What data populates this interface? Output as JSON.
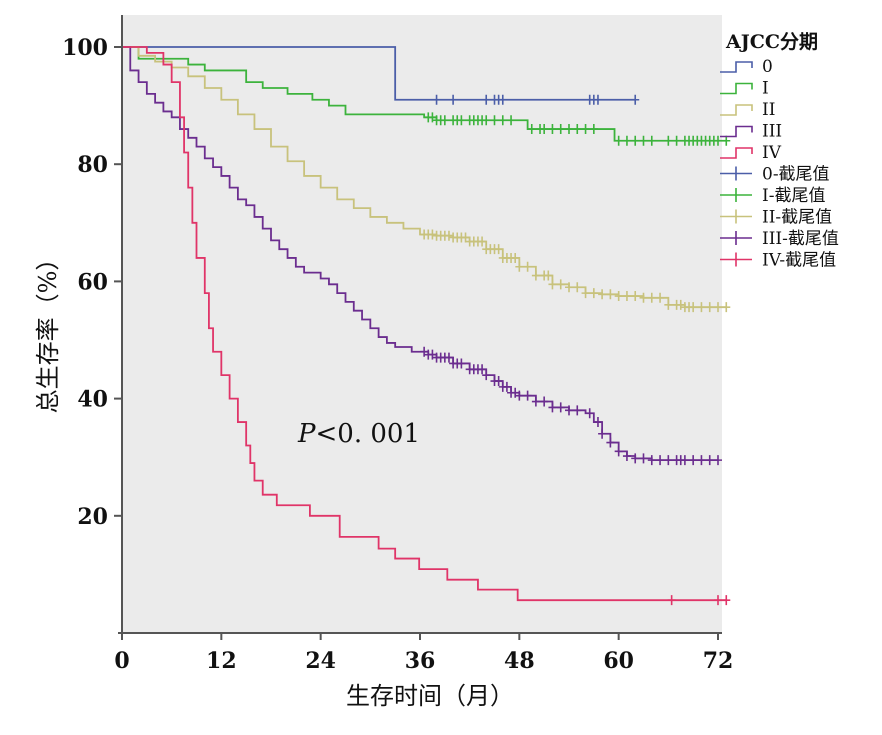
{
  "chart_data": {
    "type": "line",
    "subtype": "kaplan-meier step",
    "title": "",
    "xlabel": "生存时间（月）",
    "ylabel": "总生存率（%）",
    "xlim": [
      0,
      72
    ],
    "ylim": [
      0,
      100
    ],
    "x_ticks": [
      "0",
      "12",
      "24",
      "36",
      "48",
      "60",
      "72"
    ],
    "y_ticks": [
      "20",
      "40",
      "60",
      "80",
      "100"
    ],
    "grid": false,
    "background": "#ebebeb",
    "legend_position": "right",
    "legend_title": "AJCC分期",
    "annotation": {
      "italic": "P",
      "text": "<0. 001"
    },
    "series": [
      {
        "name": "0",
        "censor_label": "0-截尾值",
        "color": "#4b5ea8",
        "points": [
          [
            0,
            100
          ],
          [
            33,
            91
          ]
        ],
        "end": 62,
        "censored": [
          38,
          40,
          44,
          45,
          45.5,
          46,
          56.5,
          57,
          57.5,
          62
        ]
      },
      {
        "name": "I",
        "censor_label": "I-截尾值",
        "color": "#3cb33c",
        "points": [
          [
            0,
            100
          ],
          [
            2,
            98
          ],
          [
            8,
            97
          ],
          [
            10,
            96
          ],
          [
            15,
            94
          ],
          [
            17,
            93
          ],
          [
            20,
            92
          ],
          [
            23,
            91
          ],
          [
            25,
            90
          ],
          [
            27,
            88.5
          ],
          [
            36.5,
            88
          ],
          [
            38,
            87.5
          ],
          [
            49,
            86
          ],
          [
            59.5,
            84
          ]
        ],
        "end": 73,
        "censored": [
          37,
          37.5,
          38,
          38.5,
          39,
          40,
          40.5,
          41,
          42,
          42.5,
          43,
          43.5,
          44,
          45,
          46,
          47,
          49.5,
          50.5,
          51,
          52,
          53,
          54,
          55,
          56,
          57,
          60,
          61,
          62,
          63,
          64,
          66,
          67,
          68,
          68.5,
          69,
          69.5,
          70,
          70.5,
          71,
          71.5,
          72,
          73
        ]
      },
      {
        "name": "II",
        "censor_label": "II-截尾值",
        "color": "#c8c27c",
        "points": [
          [
            0,
            100
          ],
          [
            2,
            98.5
          ],
          [
            4,
            97.5
          ],
          [
            6,
            96.5
          ],
          [
            8,
            95
          ],
          [
            10,
            93
          ],
          [
            12,
            91
          ],
          [
            14,
            88.5
          ],
          [
            16,
            86
          ],
          [
            18,
            83
          ],
          [
            20,
            80.5
          ],
          [
            22,
            78
          ],
          [
            24,
            76
          ],
          [
            26,
            74
          ],
          [
            28,
            72.5
          ],
          [
            30,
            71
          ],
          [
            32,
            70
          ],
          [
            34,
            69
          ],
          [
            36,
            68
          ],
          [
            38,
            67.8
          ],
          [
            40,
            67.5
          ],
          [
            42,
            66.8
          ],
          [
            44,
            65.5
          ],
          [
            46,
            64
          ],
          [
            48,
            62.5
          ],
          [
            50,
            61
          ],
          [
            52,
            59.5
          ],
          [
            54,
            59
          ],
          [
            56,
            58
          ],
          [
            58,
            57.8
          ],
          [
            60,
            57.5
          ],
          [
            63,
            57.2
          ],
          [
            66,
            56
          ],
          [
            68,
            55.6
          ]
        ],
        "end": 73,
        "censored": [
          36.5,
          37,
          37.5,
          38,
          38.5,
          39,
          39.5,
          40,
          40.5,
          41,
          41.5,
          42,
          42.5,
          43,
          43.5,
          44,
          44.5,
          45,
          45.5,
          46,
          46.5,
          47,
          47.5,
          48,
          49,
          50,
          51,
          51.5,
          52,
          53,
          54,
          55,
          56,
          57,
          58,
          59,
          60,
          61,
          62,
          63,
          64,
          65,
          66,
          67,
          67.5,
          68,
          68.5,
          69,
          70,
          71,
          72,
          73
        ]
      },
      {
        "name": "III",
        "censor_label": "III-截尾值",
        "color": "#6b2d8f",
        "points": [
          [
            0,
            100
          ],
          [
            1,
            96
          ],
          [
            2,
            94
          ],
          [
            3,
            92
          ],
          [
            4,
            90.5
          ],
          [
            5,
            89
          ],
          [
            6,
            88
          ],
          [
            7,
            86
          ],
          [
            8,
            84.5
          ],
          [
            9,
            83
          ],
          [
            10,
            81
          ],
          [
            11,
            79.5
          ],
          [
            12,
            78
          ],
          [
            13,
            76
          ],
          [
            14,
            74
          ],
          [
            15,
            73
          ],
          [
            16,
            71
          ],
          [
            17,
            69
          ],
          [
            18,
            67
          ],
          [
            19,
            65.5
          ],
          [
            20,
            64
          ],
          [
            21,
            62.5
          ],
          [
            22,
            61.5
          ],
          [
            24,
            60.5
          ],
          [
            25,
            59.5
          ],
          [
            26,
            58
          ],
          [
            27,
            56.5
          ],
          [
            28,
            55
          ],
          [
            29,
            53.5
          ],
          [
            30,
            52
          ],
          [
            31,
            50.5
          ],
          [
            32,
            49.5
          ],
          [
            33,
            48.8
          ],
          [
            35,
            48
          ],
          [
            37,
            47.5
          ],
          [
            38,
            47
          ],
          [
            40,
            46
          ],
          [
            42,
            45
          ],
          [
            44,
            44
          ],
          [
            45,
            43
          ],
          [
            46,
            42
          ],
          [
            47,
            41
          ],
          [
            48,
            40.5
          ],
          [
            50,
            39.5
          ],
          [
            52,
            38.5
          ],
          [
            54,
            38
          ],
          [
            56,
            37.5
          ],
          [
            57,
            36
          ],
          [
            58,
            34
          ],
          [
            59,
            32.5
          ],
          [
            60,
            31
          ],
          [
            61,
            30.2
          ],
          [
            62,
            29.8
          ],
          [
            64,
            29.5
          ]
        ],
        "end": 72,
        "censored": [
          36.5,
          37,
          37.5,
          38,
          38.5,
          39,
          39.5,
          40,
          40.5,
          41,
          42,
          42.5,
          43,
          43.5,
          44,
          45,
          45.5,
          46,
          46.5,
          47,
          47.5,
          48,
          49,
          50,
          51,
          52,
          53,
          54,
          55,
          56.5,
          57.5,
          58,
          59,
          60,
          61,
          62,
          63,
          64,
          65,
          66,
          67,
          67.5,
          68,
          69,
          70,
          71,
          72
        ]
      },
      {
        "name": "IV",
        "censor_label": "IV-截尾值",
        "color": "#e03468",
        "points": [
          [
            0,
            100
          ],
          [
            3,
            99
          ],
          [
            5,
            97
          ],
          [
            6,
            94
          ],
          [
            7,
            88
          ],
          [
            7.5,
            82
          ],
          [
            8,
            76
          ],
          [
            8.5,
            70
          ],
          [
            9,
            64
          ],
          [
            10,
            58
          ],
          [
            10.5,
            52
          ],
          [
            11,
            48
          ],
          [
            12,
            44
          ],
          [
            13,
            40
          ],
          [
            14,
            36
          ],
          [
            15,
            32
          ],
          [
            15.5,
            29
          ],
          [
            16,
            26
          ],
          [
            17,
            23.6
          ],
          [
            18.7,
            21.8
          ],
          [
            22.7,
            20
          ],
          [
            26.3,
            16.4
          ],
          [
            31,
            14.4
          ],
          [
            33,
            12.7
          ],
          [
            35.9,
            10.9
          ],
          [
            39.3,
            9.1
          ],
          [
            43,
            7.4
          ],
          [
            47.8,
            5.6
          ]
        ],
        "end": 73,
        "censored": [
          66.4,
          72,
          73
        ]
      }
    ]
  }
}
